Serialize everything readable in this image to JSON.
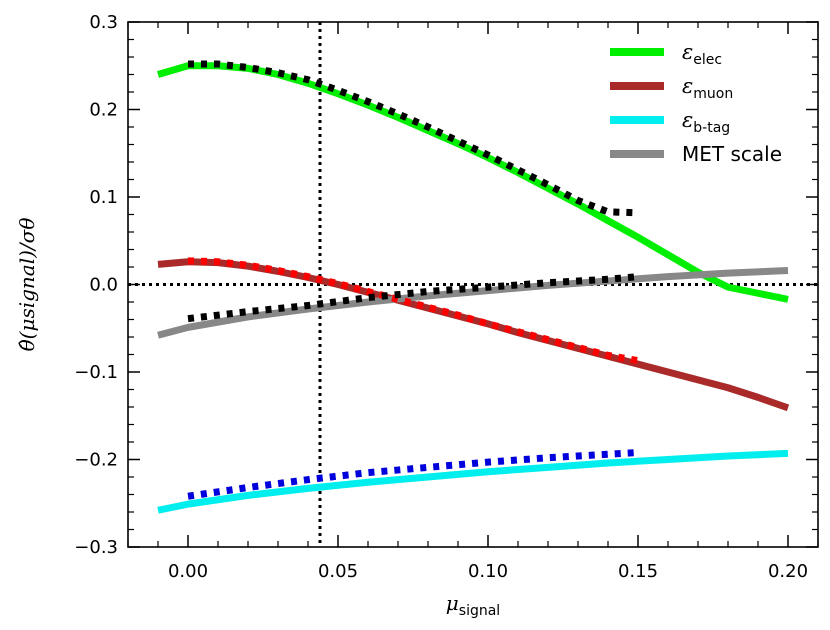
{
  "chart_data": {
    "type": "line",
    "xlabel": "μ",
    "xlabel_sub": "signal",
    "ylabel": "θ̂(μsignal)/σθ",
    "xlim": [
      -0.02,
      0.21
    ],
    "ylim": [
      -0.3,
      0.3
    ],
    "x_ticks": [
      0.0,
      0.05,
      0.1,
      0.15,
      0.2
    ],
    "x_tick_labels": [
      "0.00",
      "0.05",
      "0.10",
      "0.15",
      "0.20"
    ],
    "y_ticks": [
      -0.3,
      -0.2,
      -0.1,
      0.0,
      0.1,
      0.2,
      0.3
    ],
    "y_tick_labels": [
      "−0.3",
      "−0.2",
      "−0.1",
      "0.0",
      "0.1",
      "0.2",
      "0.3"
    ],
    "reference_lines": {
      "vertical_x": 0.044,
      "horizontal_y": 0.0
    },
    "legend_position": "top-right",
    "series": [
      {
        "name": "ε",
        "sub": "elec",
        "color": "#00ee00",
        "x": [
          -0.01,
          0.0,
          0.01,
          0.02,
          0.03,
          0.04,
          0.05,
          0.06,
          0.07,
          0.08,
          0.09,
          0.1,
          0.11,
          0.12,
          0.13,
          0.14,
          0.15,
          0.16,
          0.17,
          0.18,
          0.19,
          0.2
        ],
        "values": [
          0.24,
          0.25,
          0.25,
          0.247,
          0.24,
          0.23,
          0.218,
          0.205,
          0.191,
          0.176,
          0.161,
          0.145,
          0.128,
          0.11,
          0.092,
          0.073,
          0.054,
          0.034,
          0.014,
          -0.003,
          -0.01,
          -0.017
        ]
      },
      {
        "name": "ε",
        "sub": "muon",
        "color": "#aa2a2a",
        "x": [
          -0.01,
          0.0,
          0.01,
          0.02,
          0.03,
          0.04,
          0.05,
          0.06,
          0.07,
          0.08,
          0.09,
          0.1,
          0.11,
          0.12,
          0.13,
          0.14,
          0.15,
          0.16,
          0.17,
          0.18,
          0.19,
          0.2
        ],
        "values": [
          0.023,
          0.026,
          0.025,
          0.021,
          0.015,
          0.008,
          0.0,
          -0.009,
          -0.018,
          -0.027,
          -0.036,
          -0.045,
          -0.055,
          -0.064,
          -0.073,
          -0.082,
          -0.091,
          -0.1,
          -0.109,
          -0.118,
          -0.129,
          -0.141
        ]
      },
      {
        "name": "ε",
        "sub": "b-tag",
        "color": "#00eeee",
        "x": [
          -0.01,
          0.0,
          0.02,
          0.04,
          0.06,
          0.08,
          0.1,
          0.12,
          0.14,
          0.16,
          0.18,
          0.2
        ],
        "values": [
          -0.258,
          -0.251,
          -0.241,
          -0.233,
          -0.226,
          -0.22,
          -0.214,
          -0.209,
          -0.204,
          -0.2,
          -0.196,
          -0.193
        ]
      },
      {
        "name": "MET scale",
        "sub": "",
        "color": "#888888",
        "x": [
          -0.01,
          0.0,
          0.02,
          0.04,
          0.06,
          0.08,
          0.1,
          0.12,
          0.14,
          0.16,
          0.18,
          0.2
        ],
        "values": [
          -0.058,
          -0.049,
          -0.037,
          -0.028,
          -0.02,
          -0.013,
          -0.007,
          -0.001,
          0.004,
          0.009,
          0.013,
          0.016
        ]
      }
    ],
    "dotted_series": [
      {
        "color": "#000000",
        "x": [
          0.0,
          0.01,
          0.02,
          0.03,
          0.04,
          0.05,
          0.06,
          0.07,
          0.08,
          0.09,
          0.1,
          0.11,
          0.12,
          0.13,
          0.14,
          0.15
        ],
        "values": [
          0.252,
          0.252,
          0.248,
          0.242,
          0.234,
          0.222,
          0.209,
          0.195,
          0.18,
          0.164,
          0.148,
          0.131,
          0.114,
          0.096,
          0.083,
          0.082
        ]
      },
      {
        "color": "#ff0000",
        "x": [
          0.0,
          0.01,
          0.02,
          0.03,
          0.04,
          0.05,
          0.06,
          0.07,
          0.08,
          0.09,
          0.1,
          0.11,
          0.12,
          0.13,
          0.14,
          0.15
        ],
        "values": [
          0.027,
          0.026,
          0.022,
          0.016,
          0.009,
          0.001,
          -0.008,
          -0.017,
          -0.026,
          -0.035,
          -0.045,
          -0.054,
          -0.063,
          -0.072,
          -0.081,
          -0.087
        ]
      },
      {
        "color": "#0000dd",
        "x": [
          0.0,
          0.02,
          0.04,
          0.06,
          0.08,
          0.1,
          0.12,
          0.14,
          0.15
        ],
        "values": [
          -0.242,
          -0.232,
          -0.223,
          -0.215,
          -0.209,
          -0.203,
          -0.198,
          -0.194,
          -0.192
        ]
      },
      {
        "color": "#000000",
        "x": [
          0.0,
          0.02,
          0.04,
          0.06,
          0.08,
          0.1,
          0.12,
          0.14,
          0.15
        ],
        "values": [
          -0.039,
          -0.031,
          -0.024,
          -0.015,
          -0.008,
          -0.003,
          0.002,
          0.006,
          0.009
        ]
      }
    ]
  }
}
